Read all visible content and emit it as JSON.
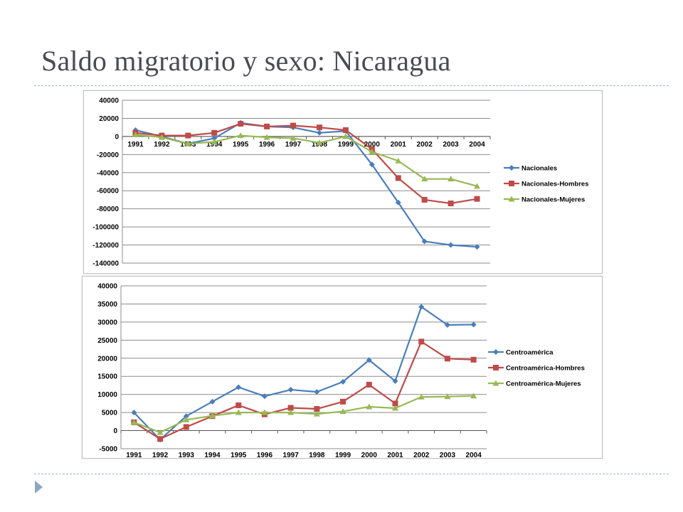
{
  "slide": {
    "title": "Saldo migratorio y sexo: Nicaragua"
  },
  "colors": {
    "title": "#4a4a55",
    "rule": "#9fb3c8",
    "bullet": "#8ea6c2",
    "series": [
      "#4a7ebb",
      "#be4b48",
      "#98b954"
    ],
    "grid": "#8c8c8c"
  },
  "chart_data": [
    {
      "type": "line",
      "title": "",
      "xlabel": "",
      "ylabel": "",
      "x": [
        "1991",
        "1992",
        "1993",
        "1994",
        "1995",
        "1996",
        "1997",
        "1998",
        "1999",
        "2000",
        "2001",
        "2002",
        "2003",
        "2004"
      ],
      "ylim": [
        -140000,
        40000
      ],
      "yticks": [
        40000,
        20000,
        0,
        -20000,
        -40000,
        -60000,
        -80000,
        -100000,
        -120000,
        -140000
      ],
      "x_labels_at_zero": true,
      "grid": true,
      "legend_position": "right",
      "series": [
        {
          "name": "Nacionales",
          "marker": "diamond",
          "color": "#4a7ebb",
          "values": [
            7000,
            0,
            -8000,
            -2000,
            15000,
            11000,
            10000,
            4000,
            6000,
            -31000,
            -73000,
            -116000,
            -120000,
            -122000
          ]
        },
        {
          "name": "Nacionales-Hombres",
          "marker": "square",
          "color": "#be4b48",
          "values": [
            4000,
            1000,
            1000,
            4000,
            14000,
            11000,
            12000,
            10000,
            7000,
            -14000,
            -46000,
            -70000,
            -74000,
            -69000
          ]
        },
        {
          "name": "Nacionales-Mujeres",
          "marker": "triangle",
          "color": "#98b954",
          "values": [
            2000,
            -1000,
            -8000,
            -6000,
            1000,
            -1000,
            -2000,
            -7000,
            0,
            -17000,
            -27000,
            -47000,
            -47000,
            -55000
          ]
        }
      ]
    },
    {
      "type": "line",
      "title": "",
      "xlabel": "",
      "ylabel": "",
      "x": [
        "1991",
        "1992",
        "1993",
        "1994",
        "1995",
        "1996",
        "1997",
        "1998",
        "1999",
        "2000",
        "2001",
        "2002",
        "2003",
        "2004"
      ],
      "ylim": [
        -5000,
        40000
      ],
      "yticks": [
        40000,
        35000,
        30000,
        25000,
        20000,
        15000,
        10000,
        5000,
        0,
        -5000
      ],
      "x_labels_at_zero": false,
      "grid": true,
      "legend_position": "right",
      "series": [
        {
          "name": "Centroamérica",
          "marker": "diamond",
          "color": "#4a7ebb",
          "values": [
            5000,
            -2500,
            4000,
            8000,
            12000,
            9500,
            11300,
            10700,
            13500,
            19500,
            13700,
            34200,
            29200,
            29300
          ]
        },
        {
          "name": "Centroamérica-Hombres",
          "marker": "square",
          "color": "#be4b48",
          "values": [
            2300,
            -2300,
            1000,
            4000,
            7000,
            4500,
            6300,
            6000,
            8000,
            12700,
            7500,
            24600,
            19900,
            19600
          ]
        },
        {
          "name": "Centroamérica-Mujeres",
          "marker": "triangle",
          "color": "#98b954",
          "values": [
            2300,
            -500,
            3000,
            4100,
            5000,
            5000,
            5000,
            4600,
            5300,
            6600,
            6200,
            9300,
            9400,
            9600
          ]
        }
      ]
    }
  ]
}
